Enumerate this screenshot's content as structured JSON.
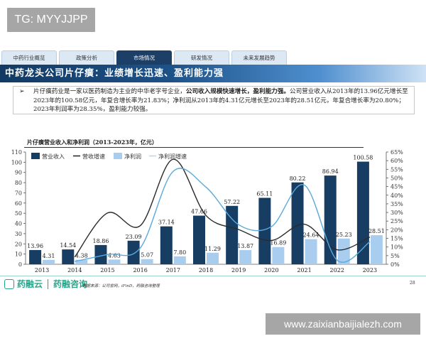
{
  "watermark_top": "TG: MYYJJPP",
  "watermark_bottom": "www.zaixianbaijialezh.com",
  "tabs": [
    {
      "label": "中药行业概览",
      "active": false
    },
    {
      "label": "政策分析",
      "active": false
    },
    {
      "label": "市场情况",
      "active": true
    },
    {
      "label": "研发情况",
      "active": false
    },
    {
      "label": "未来发展趋势",
      "active": false
    }
  ],
  "page_title": "中药龙头公司片仔癀：业绩增长迅速、盈利能力强",
  "summary": {
    "bullet": "➢",
    "part1": "片仔癀药业是一家以医药制造为主业的中华老字号企业，",
    "bold": "公司收入规模快速增长，盈利能力强。",
    "part2": "公司营业收入从2013年的13.96亿元增长至2023年的100.58亿元，年复合增长率为21.83%；净利润从2013年的4.31亿元增长至2023年的28.51亿元，年复合增长率为20.80%；2023年利润率为28.35%，盈利能力较强。"
  },
  "chart_data": {
    "type": "bar",
    "title": "片仔癀营业收入和净利润（2013-2023年，亿元）",
    "categories": [
      "2013",
      "2014",
      "2015",
      "2016",
      "2017",
      "2018",
      "2019",
      "2020",
      "2021",
      "2022",
      "2023"
    ],
    "series": [
      {
        "name": "营业收入",
        "kind": "bar",
        "axis": "left",
        "color": "#173d63",
        "values": [
          13.96,
          14.54,
          18.86,
          23.09,
          37.14,
          47.66,
          57.22,
          65.11,
          80.22,
          86.94,
          100.58
        ]
      },
      {
        "name": "营收增速",
        "kind": "line",
        "axis": "right",
        "color": "#2b2b2b",
        "values": [
          null,
          4.2,
          29.7,
          22.4,
          60.8,
          28.3,
          20.1,
          13.8,
          23.2,
          8.4,
          15.7
        ]
      },
      {
        "name": "净利润",
        "kind": "bar",
        "axis": "left",
        "color": "#a9cdef",
        "values": [
          4.31,
          4.38,
          4.63,
          5.07,
          7.8,
          11.29,
          13.87,
          16.89,
          24.64,
          25.23,
          28.51
        ]
      },
      {
        "name": "净利润增速",
        "kind": "line",
        "axis": "right",
        "color": "#4a9fd8",
        "values": [
          null,
          1.6,
          5.7,
          9.5,
          53.8,
          44.7,
          22.9,
          21.8,
          45.9,
          2.4,
          13.0
        ]
      }
    ],
    "ylabel_left": "",
    "ylim_left": [
      0,
      110
    ],
    "yticks_left": [
      0,
      10,
      20,
      30,
      40,
      50,
      60,
      70,
      80,
      90,
      100,
      110
    ],
    "ylim_right": [
      0,
      65
    ],
    "yticks_right": [
      "0%",
      "5%",
      "10%",
      "15%",
      "20%",
      "25%",
      "30%",
      "35%",
      "40%",
      "45%",
      "50%",
      "55%",
      "60%",
      "65%"
    ],
    "legend_position": "top-left"
  },
  "footer": {
    "logo1": "药融云",
    "logo2": "药融咨询",
    "source": "数据来源：公司官网，iFinD，药融咨询整理",
    "page_number": "28"
  }
}
